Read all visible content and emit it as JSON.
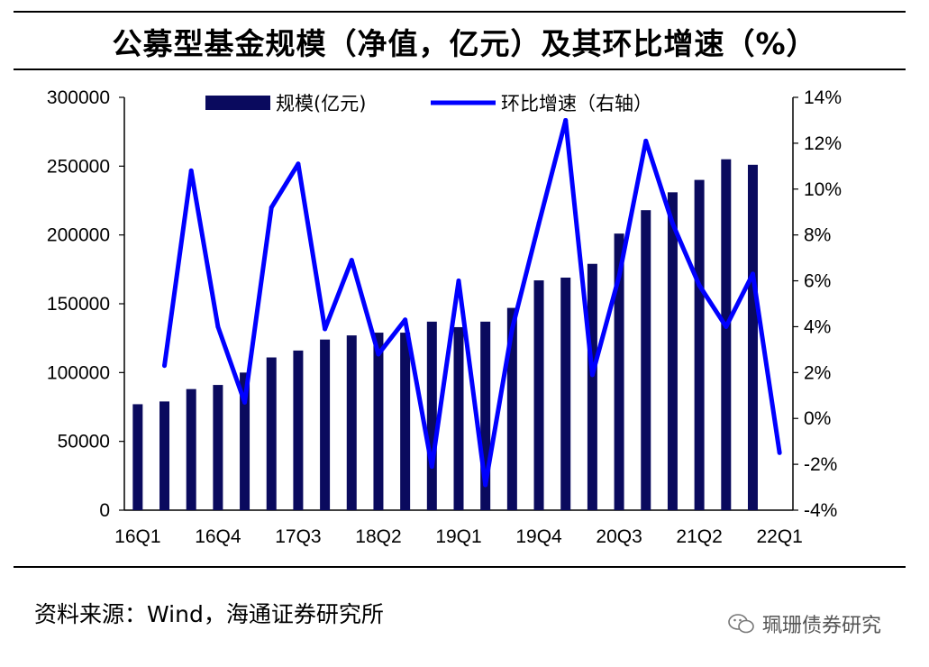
{
  "title": "公募型基金规模（净值，亿元）及其环比增速（%）",
  "source": "资料来源：Wind，海通证券研究所",
  "watermark": "珮珊债券研究",
  "colors": {
    "bar": "#0a0a5e",
    "line": "#0000ff"
  },
  "chart_data": {
    "type": "bar+line",
    "categories": [
      "16Q1",
      "16Q2",
      "16Q3",
      "16Q4",
      "17Q1",
      "17Q2",
      "17Q3",
      "17Q4",
      "18Q1",
      "18Q2",
      "18Q3",
      "18Q4",
      "19Q1",
      "19Q2",
      "19Q3",
      "19Q4",
      "20Q1",
      "20Q2",
      "20Q3",
      "20Q4",
      "21Q1",
      "21Q2",
      "21Q3",
      "21Q4",
      "22Q1"
    ],
    "x_tick_labels": [
      "16Q1",
      "16Q4",
      "17Q3",
      "18Q2",
      "19Q1",
      "19Q4",
      "20Q3",
      "21Q2",
      "22Q1"
    ],
    "series": [
      {
        "name": "规模(亿元)",
        "type": "bar",
        "axis": "left",
        "values": [
          77000,
          79000,
          88000,
          91000,
          100000,
          111000,
          116000,
          124000,
          127000,
          129000,
          129000,
          137000,
          133000,
          137000,
          147000,
          167000,
          169000,
          179000,
          201000,
          218000,
          231000,
          240000,
          255000,
          251000,
          null
        ]
      },
      {
        "name": "环比增速（右轴）",
        "type": "line",
        "axis": "right",
        "values": [
          null,
          2.3,
          10.8,
          4.0,
          0.7,
          9.2,
          11.1,
          3.9,
          6.9,
          2.8,
          4.3,
          -2.1,
          6.0,
          -2.9,
          3.9,
          8.5,
          13.0,
          1.9,
          6.2,
          12.1,
          8.5,
          5.8,
          4.0,
          6.3,
          -1.5
        ]
      }
    ],
    "left_axis": {
      "ylim": [
        0,
        300000
      ],
      "ticks": [
        "0",
        "50000",
        "100000",
        "150000",
        "200000",
        "250000",
        "300000"
      ]
    },
    "right_axis": {
      "ylim": [
        -4,
        14
      ],
      "ticks": [
        "-4%",
        "-2%",
        "0%",
        "2%",
        "4%",
        "6%",
        "8%",
        "10%",
        "12%",
        "14%"
      ]
    },
    "legend_position": "top"
  }
}
